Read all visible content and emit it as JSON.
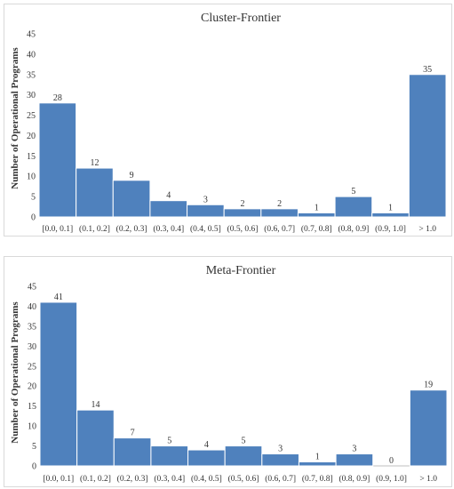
{
  "chart_data": [
    {
      "type": "bar",
      "title": "Cluster-Frontier",
      "xlabel": "",
      "ylabel": "Number of Operational Programs",
      "categories": [
        "[0.0, 0.1]",
        "(0.1, 0.2]",
        "(0.2, 0.3]",
        "(0.3, 0.4]",
        "(0.4, 0.5]",
        "(0.5, 0.6]",
        "(0.6, 0.7]",
        "(0.7, 0.8]",
        "(0.8, 0.9]",
        "(0.9, 1.0]",
        "> 1.0"
      ],
      "values": [
        28,
        12,
        9,
        4,
        3,
        2,
        2,
        1,
        5,
        1,
        35
      ],
      "ylim": [
        0,
        45
      ],
      "yticks": [
        0,
        5,
        10,
        15,
        20,
        25,
        30,
        35,
        40,
        45
      ],
      "grid": false,
      "legend": "none",
      "bar_color": "#4f81bd"
    },
    {
      "type": "bar",
      "title": "Meta-Frontier",
      "xlabel": "",
      "ylabel": "Number of Operational Programs",
      "categories": [
        "[0.0, 0.1]",
        "(0.1, 0.2]",
        "(0.2, 0.3]",
        "(0.3, 0.4]",
        "(0.4, 0.5]",
        "(0.5, 0.6]",
        "(0.6, 0.7]",
        "(0.7, 0.8]",
        "(0.8, 0.9]",
        "(0.9, 1.0]",
        "> 1.0"
      ],
      "values": [
        41,
        14,
        7,
        5,
        4,
        5,
        3,
        1,
        3,
        0,
        19
      ],
      "ylim": [
        0,
        45
      ],
      "yticks": [
        0,
        5,
        10,
        15,
        20,
        25,
        30,
        35,
        40,
        45
      ],
      "grid": false,
      "legend": "none",
      "bar_color": "#4f81bd"
    }
  ]
}
